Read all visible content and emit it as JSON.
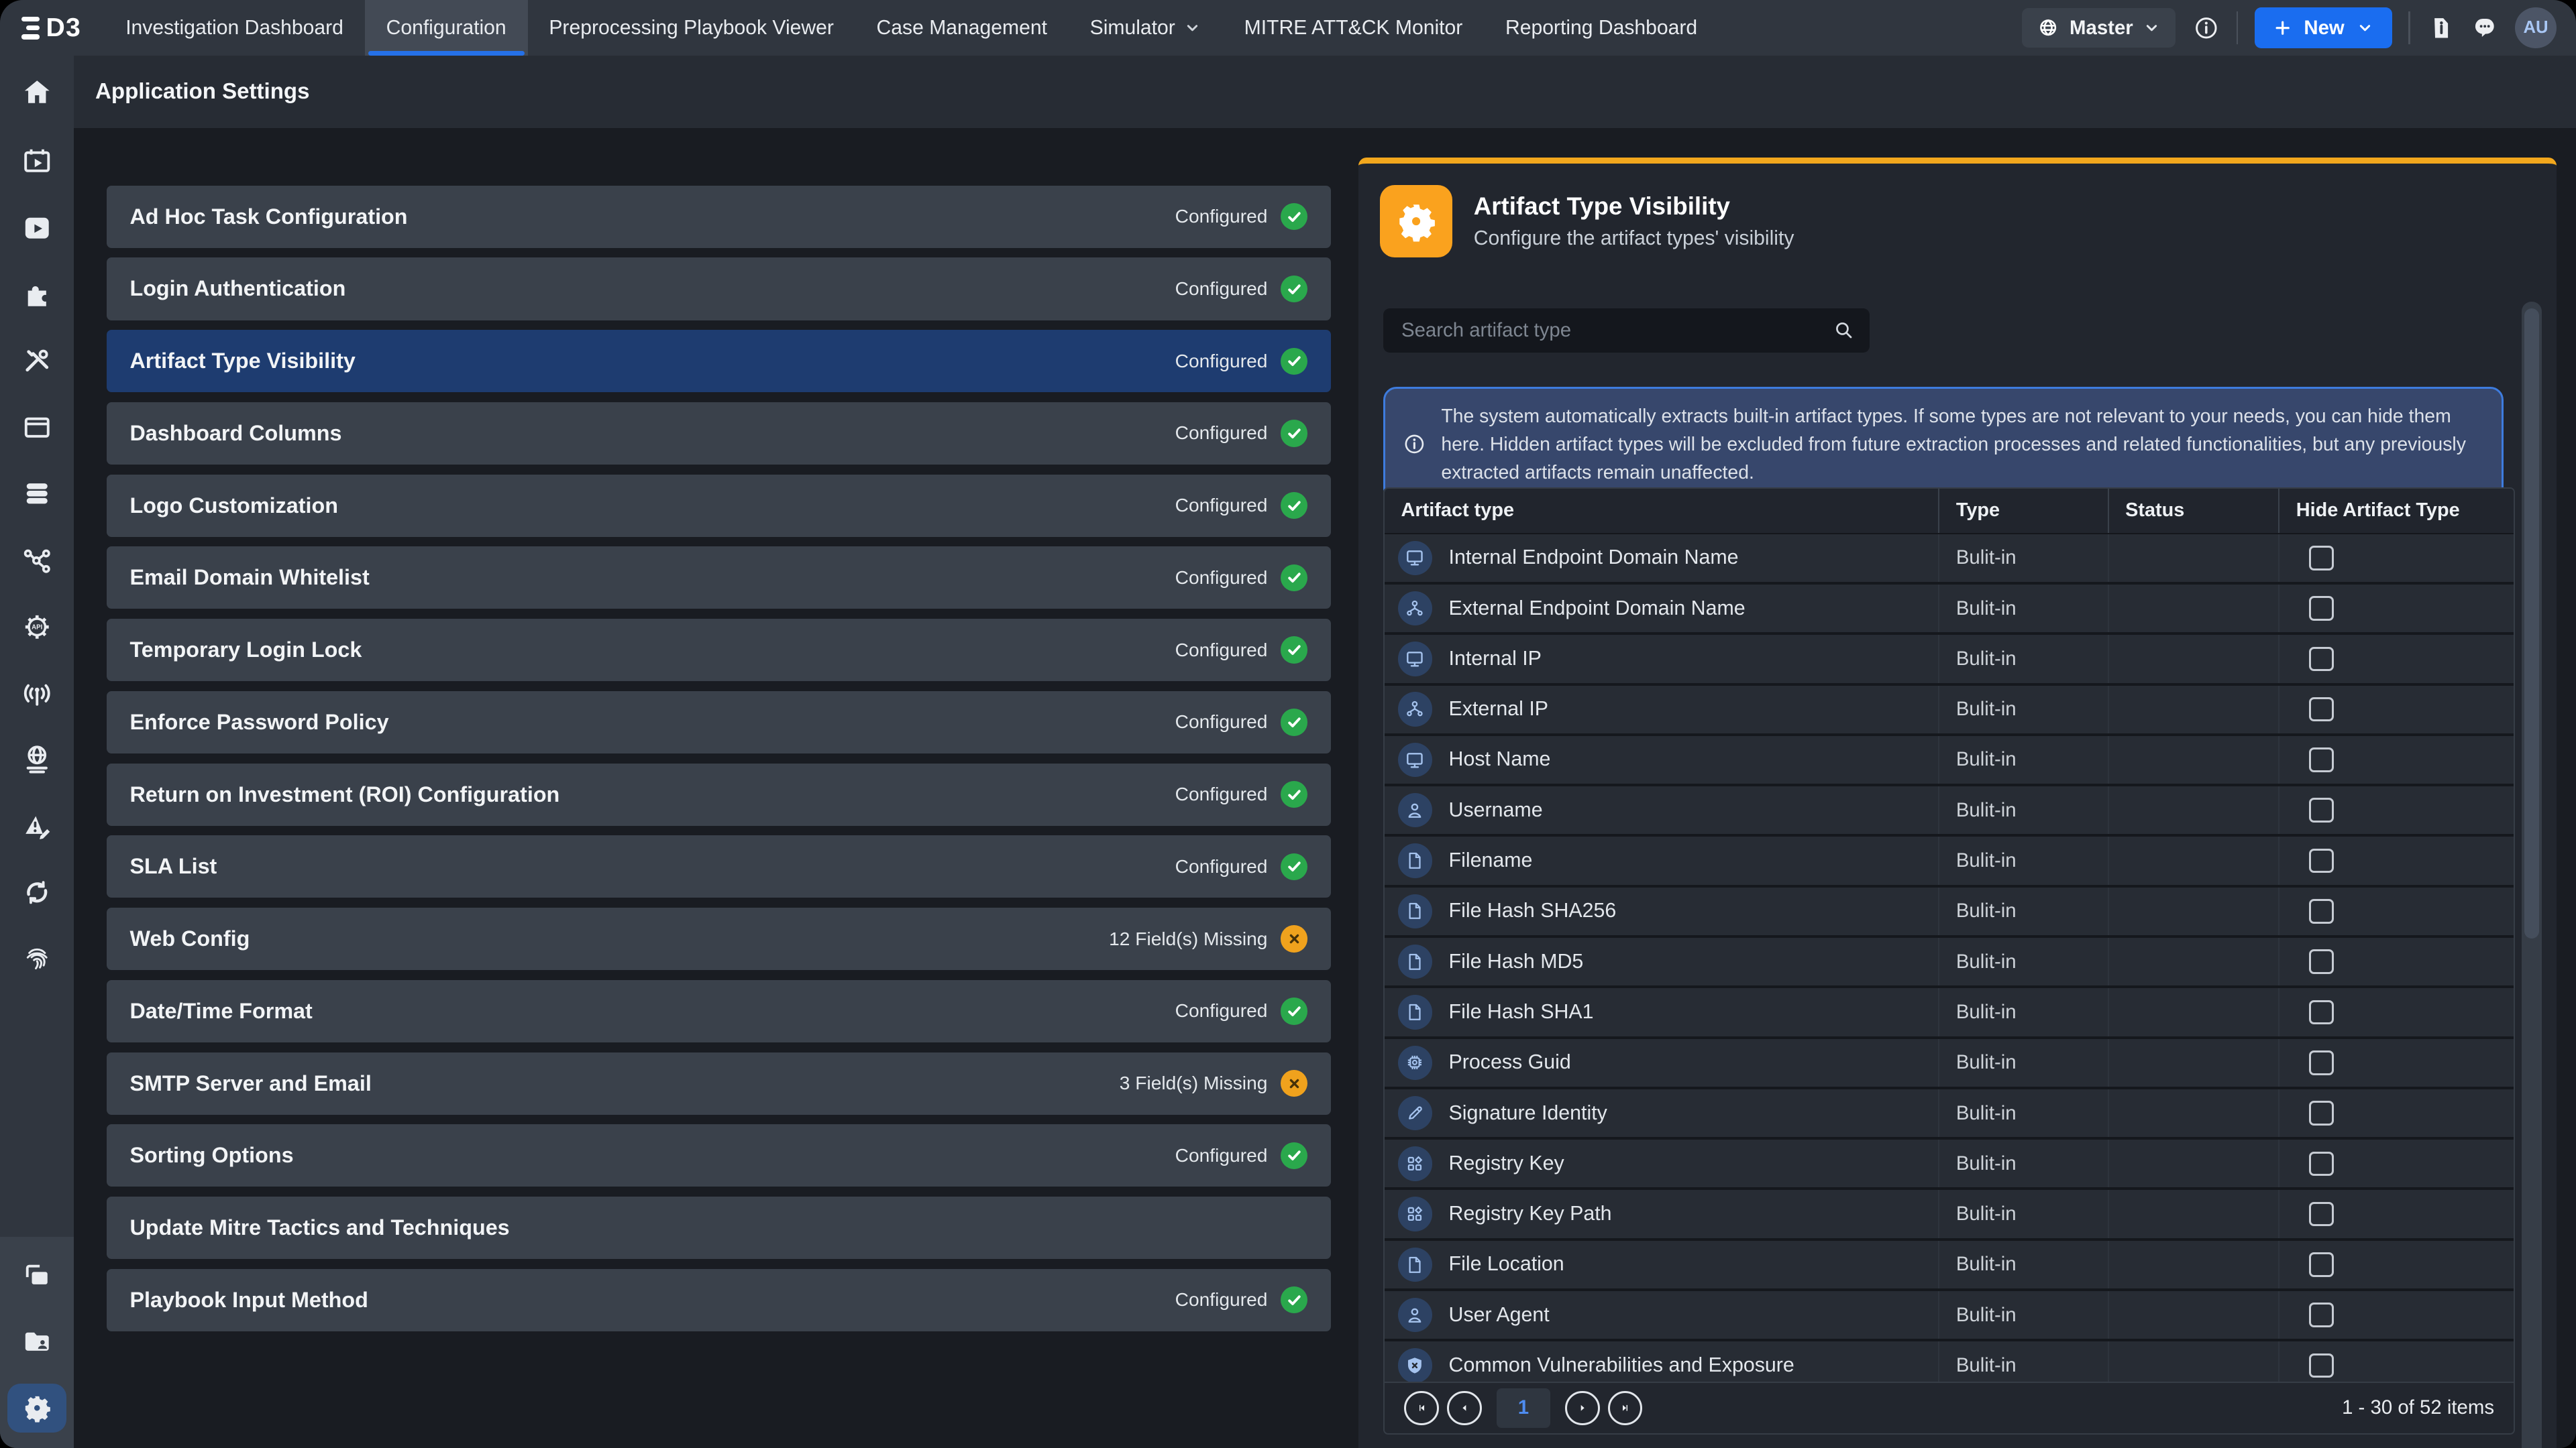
{
  "topnav": {
    "logo_text": "D3",
    "items": [
      {
        "label": "Investigation Dashboard",
        "active": false,
        "dropdown": false
      },
      {
        "label": "Configuration",
        "active": true,
        "dropdown": false
      },
      {
        "label": "Preprocessing Playbook Viewer",
        "active": false,
        "dropdown": false
      },
      {
        "label": "Case Management",
        "active": false,
        "dropdown": false
      },
      {
        "label": "Simulator",
        "active": false,
        "dropdown": true
      },
      {
        "label": "MITRE ATT&CK Monitor",
        "active": false,
        "dropdown": false
      },
      {
        "label": "Reporting Dashboard",
        "active": false,
        "dropdown": false
      }
    ],
    "master_label": "Master",
    "new_label": "New",
    "avatar_initials": "AU",
    "icons": [
      "globe-icon",
      "info-icon",
      "document-info-icon",
      "chat-icon"
    ]
  },
  "page": {
    "title": "Application Settings"
  },
  "sidebar": {
    "top_items": [
      {
        "icon": "home"
      },
      {
        "icon": "calendar-play"
      },
      {
        "icon": "book-play"
      },
      {
        "icon": "puzzle"
      },
      {
        "icon": "tools"
      },
      {
        "icon": "panel"
      },
      {
        "icon": "database"
      },
      {
        "icon": "share-nodes"
      },
      {
        "icon": "gear-api"
      },
      {
        "icon": "antenna"
      },
      {
        "icon": "globe-lines"
      },
      {
        "icon": "alert-edit"
      },
      {
        "icon": "sync"
      },
      {
        "icon": "fingerprint"
      }
    ],
    "bottom_items": [
      {
        "icon": "windows-copy",
        "active": false
      },
      {
        "icon": "folder-user",
        "active": false
      },
      {
        "icon": "gear",
        "active": true
      }
    ]
  },
  "settings_list": [
    {
      "label": "Ad Hoc Task Configuration",
      "status": "Configured",
      "state": "ok",
      "selected": false
    },
    {
      "label": "Login Authentication",
      "status": "Configured",
      "state": "ok",
      "selected": false
    },
    {
      "label": "Artifact Type Visibility",
      "status": "Configured",
      "state": "ok",
      "selected": true
    },
    {
      "label": "Dashboard Columns",
      "status": "Configured",
      "state": "ok",
      "selected": false
    },
    {
      "label": "Logo Customization",
      "status": "Configured",
      "state": "ok",
      "selected": false
    },
    {
      "label": "Email Domain Whitelist",
      "status": "Configured",
      "state": "ok",
      "selected": false
    },
    {
      "label": "Temporary Login Lock",
      "status": "Configured",
      "state": "ok",
      "selected": false
    },
    {
      "label": "Enforce Password Policy",
      "status": "Configured",
      "state": "ok",
      "selected": false
    },
    {
      "label": "Return on Investment (ROI) Configuration",
      "status": "Configured",
      "state": "ok",
      "selected": false
    },
    {
      "label": "SLA List",
      "status": "Configured",
      "state": "ok",
      "selected": false
    },
    {
      "label": "Web Config",
      "status": "12 Field(s) Missing",
      "state": "warn",
      "selected": false
    },
    {
      "label": "Date/Time Format",
      "status": "Configured",
      "state": "ok",
      "selected": false
    },
    {
      "label": "SMTP Server and Email",
      "status": "3 Field(s) Missing",
      "state": "warn",
      "selected": false
    },
    {
      "label": "Sorting Options",
      "status": "Configured",
      "state": "ok",
      "selected": false
    },
    {
      "label": "Update Mitre Tactics and Techniques",
      "status": "",
      "state": "none",
      "selected": false
    },
    {
      "label": "Playbook Input Method",
      "status": "Configured",
      "state": "ok",
      "selected": false
    }
  ],
  "panel": {
    "title": "Artifact Type Visibility",
    "subtitle": "Configure the artifact types' visibility",
    "search_placeholder": "Search artifact type",
    "info_text": "The system automatically extracts built-in artifact types. If some types are not relevant to your needs, you can hide them here. Hidden artifact types will be excluded from future extraction processes and related functionalities, but any previously extracted artifacts remain unaffected.",
    "table": {
      "columns": [
        "Artifact type",
        "Type",
        "Status",
        "Hide Artifact Type"
      ],
      "rows": [
        {
          "icon": "monitor",
          "name": "Internal Endpoint Domain Name",
          "type": "Bulit-in"
        },
        {
          "icon": "network",
          "name": "External Endpoint Domain Name",
          "type": "Bulit-in"
        },
        {
          "icon": "monitor",
          "name": "Internal IP",
          "type": "Bulit-in"
        },
        {
          "icon": "network",
          "name": "External IP",
          "type": "Bulit-in"
        },
        {
          "icon": "monitor",
          "name": "Host Name",
          "type": "Bulit-in"
        },
        {
          "icon": "person",
          "name": "Username",
          "type": "Bulit-in"
        },
        {
          "icon": "file",
          "name": "Filename",
          "type": "Bulit-in"
        },
        {
          "icon": "file",
          "name": "File Hash SHA256",
          "type": "Bulit-in"
        },
        {
          "icon": "file",
          "name": "File Hash MD5",
          "type": "Bulit-in"
        },
        {
          "icon": "file",
          "name": "File Hash SHA1",
          "type": "Bulit-in"
        },
        {
          "icon": "chip",
          "name": "Process Guid",
          "type": "Bulit-in"
        },
        {
          "icon": "pen",
          "name": "Signature Identity",
          "type": "Bulit-in"
        },
        {
          "icon": "grid",
          "name": "Registry Key",
          "type": "Bulit-in"
        },
        {
          "icon": "grid",
          "name": "Registry Key Path",
          "type": "Bulit-in"
        },
        {
          "icon": "file",
          "name": "File Location",
          "type": "Bulit-in"
        },
        {
          "icon": "person",
          "name": "User Agent",
          "type": "Bulit-in"
        },
        {
          "icon": "shield-x",
          "name": "Common Vulnerabilities and Exposure",
          "type": "Bulit-in"
        }
      ]
    },
    "pagination": {
      "page": "1",
      "range_text": "1 - 30 of 52 items"
    }
  },
  "colors": {
    "accent_blue": "#2571E8",
    "accent_orange": "#F2A71D",
    "status_ok_green": "#2AA84C",
    "status_warn_orange": "#F0A21D",
    "selected_row_blue": "#1E3C70",
    "panel_bg": "#22262E",
    "topnav_bg": "#30363F"
  }
}
